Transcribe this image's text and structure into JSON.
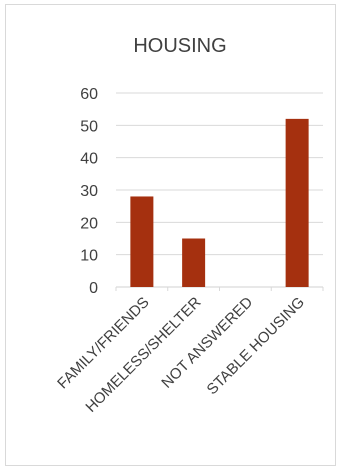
{
  "chart_data": {
    "type": "bar",
    "title": "HOUSING",
    "categories": [
      "FAMILY/FRIENDS",
      "HOMELESS/SHELTER",
      "NOT ANSWERED",
      "STABLE HOUSING"
    ],
    "values": [
      28,
      15,
      0,
      52
    ],
    "ylim": [
      0,
      60
    ],
    "yticks": [
      0,
      10,
      20,
      30,
      40,
      50,
      60
    ],
    "grid": true,
    "legend": "none",
    "bar_color": "#a5300f",
    "grid_color": "#d9d9d9",
    "text_color": "#404040"
  }
}
